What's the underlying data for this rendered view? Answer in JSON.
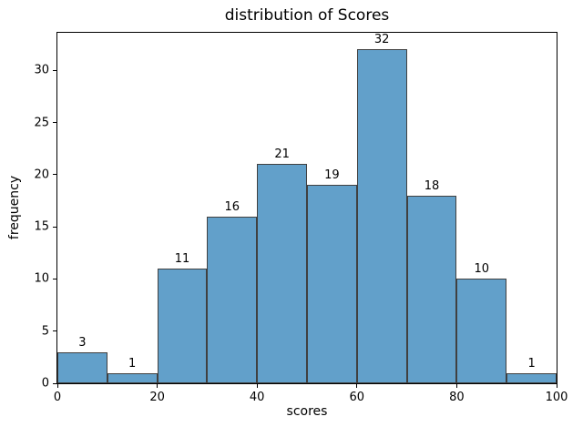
{
  "chart_data": {
    "type": "bar",
    "subtype": "histogram",
    "title": "distribution of Scores",
    "xlabel": "scores",
    "ylabel": "frequency",
    "bin_edges": [
      0,
      10,
      20,
      30,
      40,
      50,
      60,
      70,
      80,
      90,
      100
    ],
    "values": [
      3,
      1,
      11,
      16,
      21,
      19,
      32,
      18,
      10,
      1
    ],
    "bar_labels": [
      "3",
      "1",
      "11",
      "16",
      "21",
      "19",
      "32",
      "18",
      "10",
      "1"
    ],
    "xticks": [
      0,
      20,
      40,
      60,
      80,
      100
    ],
    "yticks": [
      0,
      5,
      10,
      15,
      20,
      25,
      30
    ],
    "xlim": [
      0,
      100
    ],
    "ylim": [
      0,
      33.6
    ],
    "grid": false,
    "legend": "none",
    "bar_fill_color": "#62a0ca",
    "bar_edge_color": "#404040",
    "axis_color": "#000000",
    "background_color": "#ffffff"
  }
}
